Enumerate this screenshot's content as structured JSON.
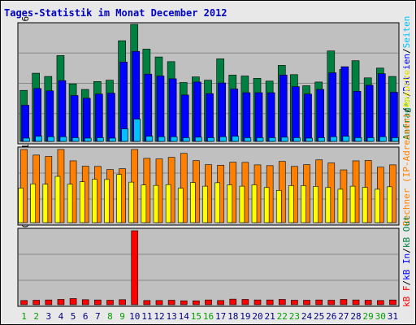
{
  "chart_data": {
    "type": "bar",
    "title": "Tages-Statistik im Monat December 2012",
    "categories": [
      "1",
      "2",
      "3",
      "4",
      "5",
      "6",
      "7",
      "8",
      "9",
      "10",
      "11",
      "12",
      "13",
      "14",
      "15",
      "16",
      "17",
      "18",
      "19",
      "20",
      "21",
      "22",
      "23",
      "24",
      "25",
      "26",
      "27",
      "28",
      "29",
      "30",
      "31"
    ],
    "weekend_days": [
      1,
      2,
      8,
      9,
      15,
      16,
      22,
      23,
      29,
      30
    ],
    "colors": {
      "anfragen": "#008040",
      "dateien": "#0000ff",
      "seiten": "#00c0ff",
      "rechner": "#ff8000",
      "besuche": "#ffff00",
      "kb_in": "#0000ff",
      "kb_out": "#008040",
      "kb_f": "#ff0000",
      "weekday": "#000080",
      "weekend": "#00a000",
      "title": "#0000c0"
    },
    "panels": [
      {
        "max_label": "25226",
        "series": [
          {
            "name": "Anfragen",
            "values": [
              11000,
              14700,
              14000,
              18500,
              12400,
              11200,
              12900,
              13200,
              21700,
              25226,
              19900,
              18200,
              17200,
              12700,
              13900,
              13200,
              17800,
              14300,
              14100,
              13600,
              13000,
              16400,
              14400,
              12000,
              12800,
              19500,
              15500,
              17400,
              13700,
              15800,
              14000
            ]
          },
          {
            "name": "Dateien",
            "values": [
              7800,
              11400,
              10900,
              13100,
              9900,
              9300,
              10200,
              10400,
              17100,
              19400,
              14500,
              14100,
              13500,
              10000,
              12800,
              10300,
              12600,
              11300,
              10500,
              10500,
              10500,
              14300,
              11800,
              10200,
              11200,
              14800,
              16100,
              10800,
              12100,
              14600,
              10600
            ]
          },
          {
            "name": "Seiten",
            "values": [
              700,
              1100,
              1000,
              1000,
              800,
              700,
              800,
              700,
              2700,
              4800,
              1100,
              1000,
              1000,
              800,
              900,
              800,
              1000,
              1100,
              800,
              800,
              800,
              900,
              800,
              700,
              800,
              1000,
              1100,
              800,
              800,
              1000,
              800
            ]
          }
        ],
        "legend": [
          "Anfragen",
          "/",
          "Dateien",
          "/",
          "Seiten"
        ]
      },
      {
        "max_label": "381",
        "series": [
          {
            "name": "Rechner (IP-Adressen)",
            "values": [
              381,
              352,
              345,
              381,
              322,
              294,
              293,
              277,
              281,
              381,
              335,
              332,
              340,
              361,
              323,
              302,
              299,
              315,
              314,
              301,
              297,
              319,
              293,
              302,
              327,
              311,
              275,
              322,
              324,
              289,
              301
            ]
          },
          {
            "name": "Besuche",
            "values": [
              180,
              202,
              200,
              241,
              200,
              213,
              226,
              225,
              251,
              211,
              196,
              194,
              198,
              179,
              209,
              190,
              208,
              197,
              190,
              197,
              183,
              168,
              193,
              193,
              189,
              183,
              174,
              190,
              184,
              174,
              187
            ]
          }
        ],
        "legend": [
          "Rechner (IP-Adressen)",
          "/",
          "Besuche"
        ]
      },
      {
        "max_label": "2652070",
        "series": [
          {
            "name": "kB F",
            "values": [
              150000,
              160000,
              170000,
              190000,
              220000,
              180000,
              170000,
              160000,
              180000,
              2652070,
              150000,
              150000,
              160000,
              140000,
              140000,
              170000,
              150000,
              200000,
              190000,
              170000,
              170000,
              190000,
              160000,
              160000,
              170000,
              160000,
              190000,
              170000,
              160000,
              150000,
              170000
            ]
          },
          {
            "name": "kB In",
            "values": [
              0,
              0,
              0,
              0,
              0,
              0,
              0,
              0,
              0,
              0,
              0,
              0,
              0,
              0,
              0,
              0,
              0,
              0,
              0,
              0,
              0,
              0,
              0,
              0,
              0,
              0,
              0,
              0,
              0,
              0,
              0
            ]
          },
          {
            "name": "kB Out",
            "values": [
              0,
              0,
              0,
              0,
              0,
              0,
              0,
              0,
              0,
              0,
              0,
              0,
              0,
              0,
              0,
              0,
              0,
              0,
              0,
              0,
              0,
              0,
              0,
              0,
              0,
              0,
              0,
              0,
              0,
              0,
              0
            ]
          }
        ],
        "legend": [
          "kB F",
          "/",
          "kB In",
          "/",
          "kB Out"
        ]
      }
    ]
  }
}
